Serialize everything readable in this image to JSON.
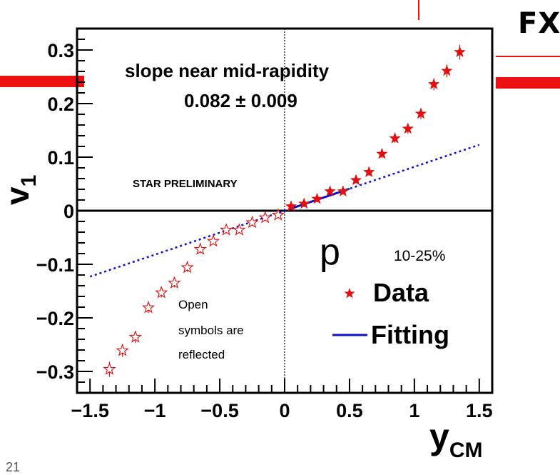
{
  "slide": {
    "corner_text": "FX",
    "page_number": "21"
  },
  "chart_data": {
    "type": "scatter",
    "xlabel": "y",
    "xlabel_sub": "CM",
    "ylabel": "v",
    "ylabel_sub": "1",
    "xlim": [
      -1.6,
      1.6
    ],
    "ylim": [
      -0.34,
      0.34
    ],
    "x_ticks": [
      -1.5,
      -1,
      -0.5,
      0,
      0.5,
      1,
      1.5
    ],
    "x_tick_labels": [
      "−1.5",
      "−1",
      "−0.5",
      "0",
      "0.5",
      "1",
      "1.5"
    ],
    "y_ticks": [
      -0.3,
      -0.2,
      -0.1,
      0,
      0.1,
      0.2,
      0.3
    ],
    "y_tick_labels": [
      "−0.3",
      "−0.2",
      "−0.1",
      "0",
      "0.1",
      "0.2",
      "0.3"
    ],
    "grid": false,
    "particle": "p",
    "centrality": "10-25%",
    "annotations": {
      "slope_title": "slope near mid-rapidity",
      "slope_value": "0.082 ± 0.009",
      "preliminary": "STAR PRELIMINARY",
      "reflect_note": [
        "Open",
        "symbols are",
        "reflected"
      ]
    },
    "legend": {
      "position": "bottom-right",
      "entries": [
        {
          "label": "Data",
          "marker": "filled-star"
        },
        {
          "label": "Fitting",
          "marker": "line"
        }
      ]
    },
    "series": [
      {
        "name": "Data",
        "marker": "filled-star",
        "color": "#e01010",
        "x": [
          0.05,
          0.15,
          0.25,
          0.35,
          0.45,
          0.55,
          0.65,
          0.75,
          0.85,
          0.95,
          1.05,
          1.15,
          1.25,
          1.35
        ],
        "y": [
          0.008,
          0.013,
          0.022,
          0.036,
          0.036,
          0.057,
          0.072,
          0.106,
          0.135,
          0.153,
          0.181,
          0.236,
          0.261,
          0.296
        ],
        "yerr": [
          0.006,
          0.006,
          0.006,
          0.006,
          0.006,
          0.006,
          0.007,
          0.008,
          0.008,
          0.009,
          0.01,
          0.011,
          0.012,
          0.014
        ]
      },
      {
        "name": "Reflected",
        "marker": "open-star",
        "color": "#e01010",
        "x": [
          -0.05,
          -0.15,
          -0.25,
          -0.35,
          -0.45,
          -0.55,
          -0.65,
          -0.75,
          -0.85,
          -0.95,
          -1.05,
          -1.15,
          -1.25,
          -1.35
        ],
        "y": [
          -0.008,
          -0.013,
          -0.022,
          -0.036,
          -0.036,
          -0.057,
          -0.072,
          -0.106,
          -0.135,
          -0.153,
          -0.181,
          -0.236,
          -0.261,
          -0.296
        ],
        "yerr": [
          0.006,
          0.006,
          0.006,
          0.006,
          0.006,
          0.006,
          0.007,
          0.008,
          0.008,
          0.009,
          0.01,
          0.011,
          0.012,
          0.014
        ]
      }
    ],
    "fit": {
      "name": "Fitting",
      "slope": 0.082,
      "color": "#1010cc",
      "solid_range": [
        0.05,
        0.5
      ],
      "dotted_range": [
        -1.5,
        1.5
      ]
    }
  },
  "colors": {
    "accent_red": "#ee1111",
    "fit_blue": "#1010cc",
    "axis": "#000000"
  }
}
